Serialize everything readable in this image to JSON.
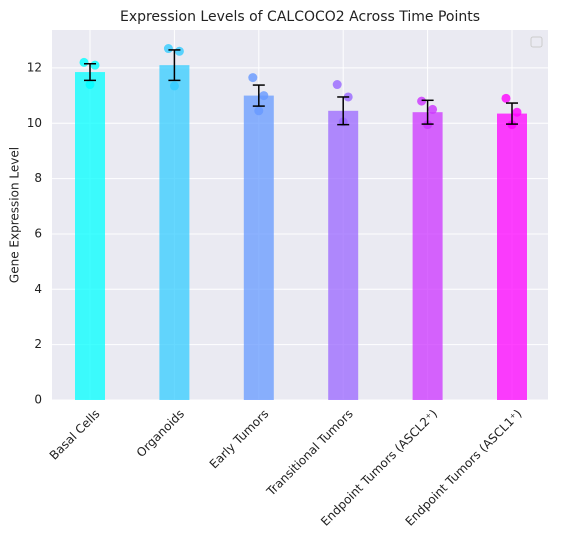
{
  "chart_data": {
    "type": "bar",
    "title": "Expression Levels of CALCOCO2 Across Time Points",
    "ylabel": "Gene Expression Level",
    "categories": [
      "Basal Cells",
      "Organoids",
      "Early Tumors",
      "Transitional Tumors",
      "Endpoint Tumors (ASCL2⁺)",
      "Endpoint Tumors (ASCL1⁺)"
    ],
    "values": [
      11.85,
      12.1,
      11.0,
      10.45,
      10.4,
      10.35
    ],
    "errors": [
      0.3,
      0.55,
      0.38,
      0.5,
      0.43,
      0.38
    ],
    "points": [
      [
        12.2,
        12.1,
        11.4
      ],
      [
        12.7,
        12.6,
        11.35
      ],
      [
        11.65,
        11.0,
        10.45
      ],
      [
        11.4,
        10.95,
        10.05
      ],
      [
        10.8,
        10.5,
        9.95
      ],
      [
        10.9,
        10.4,
        9.95
      ]
    ],
    "colors": [
      "#00ffff",
      "#33ccff",
      "#6699ff",
      "#9966ff",
      "#cc33ff",
      "#ff00ff"
    ],
    "ylim": [
      0,
      13.37
    ],
    "yticks": [
      0,
      2,
      4,
      6,
      8,
      10,
      12
    ],
    "grid": true
  }
}
